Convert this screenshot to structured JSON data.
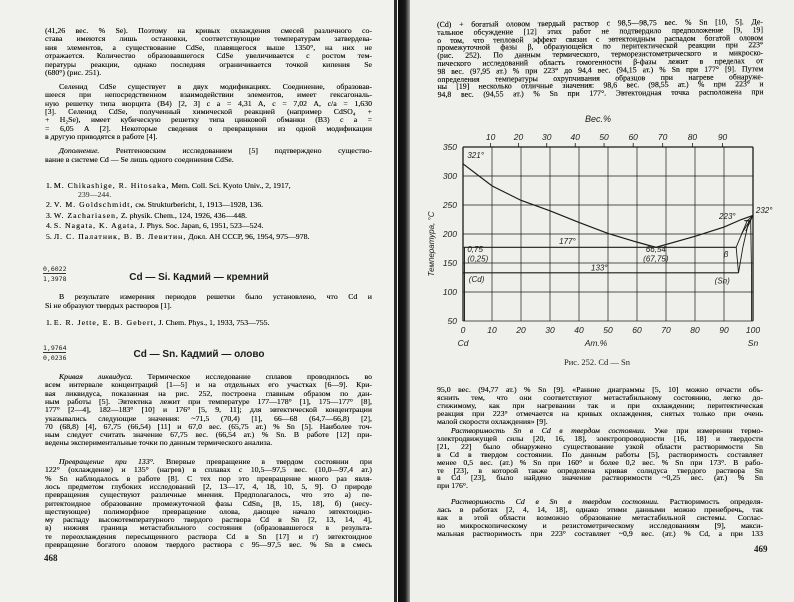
{
  "left_page": {
    "p1": {
      "lead": "",
      "lines": [
        "(41,26 вес. % Se). Поэтому на кривых охлаждения смесей различного со-",
        "става имеются лишь остановки, соответствующие температурам затвердева-",
        "ния элементов, а существование CdSe, плавящегося выше 1350°, на них не",
        "отражается. Количество образовавшегося CdSe увеличивается с ростом тем-",
        "пературы реакции, однако последняя ограничивается точкой кипения Se",
        "(680°) (рис. 251)."
      ]
    },
    "p2": {
      "lead": "",
      "lines": [
        "Селенид CdSe существует в двух модификациях. Соединение, образовав-",
        "шееся при непосредственном взаимодействии элементов, имеет гексагональ-",
        "ную решетку типа вюрцита (B4) [2, 3] с a = 4,31 A, c = 7,02 A, c/a = 1,630",
        "[3]. Селенид CdSe, полученный химической реакцией (например CdSO₄ +",
        "+ H₂Se), имеет кубическую решетку типа цинковой обманки (B3) с a =",
        "= 6,05 A [2]. Некоторые сведения о превращении из одной модификации",
        "в другую приводятся в работе [4]."
      ]
    },
    "p3": {
      "lead": "Дополнение.",
      "lines": [
        " Рентгеновским исследованием [5] подтверждено существо-",
        "вание в системе Cd — Se лишь одного соединения CdSe."
      ]
    },
    "refs_se": [
      {
        "num": "1.",
        "authors": "M. Chikashige, R. Hitosaka,",
        "source": " Mem. Coll. Sci. Kyoto Univ., 2, 1917,",
        "cont": "239—244."
      },
      {
        "num": "2.",
        "authors": "V. M. Goldschmidt,",
        "source": " см. Strukturbericht, 1, 1913—1928, 136."
      },
      {
        "num": "3.",
        "authors": "W. Zachariasen,",
        "source": " Z. physik. Chem., 124, 1926, 436—448."
      },
      {
        "num": "4.",
        "authors": "S. Nagata, K. Agata,",
        "source": " J. Phys. Soc. Japan, 6, 1951, 523—524."
      },
      {
        "num": "5.",
        "authors": "Л. С. Палатник, В. В. Левитин,",
        "source": " Докл. АН СССР, 96, 1954, 975—978."
      }
    ],
    "cd_si": {
      "margin_top": "0,6022",
      "margin_bottom": "1,3978",
      "title": "Cd — Si. Кадмий — кремний",
      "para": {
        "lead": "",
        "lines": [
          "В результате измерения периодов решетки было установлено, что Cd и",
          "Si не образуют твердых растворов [1]."
        ]
      },
      "refs": [
        {
          "num": "1.",
          "authors": "E. R. Jette, E. B. Gebert,",
          "source": " J. Chem. Phys., 1, 1933, 753—755."
        }
      ]
    },
    "cd_sn": {
      "margin_top": "1,9764",
      "margin_bottom": "0,0236",
      "title": "Cd — Sn. Кадмий — олово",
      "p1": {
        "lead": "Кривая ликвидуса.",
        "lines": [
          " Термическое исследование сплавов проводилось во",
          "всем интервале концентраций [1—5] и на отдельных его участках [6—9]. Кри-",
          "вая ликвидуса, показанная на рис. 252, построена главным образом по дан-",
          "ным работы [5]. Эвтектика лежит при температуре 177—178° [1], 175—177° [8],",
          "177° [2—4], 182—183° [10] и 176° [5, 9, 11]; для эвтектической концентрации",
          "указывались следующие значения: ~71,5 (70,4) [1], 66—68 (64,7—66,8) [2],",
          "70 (68,8) [4], 67,75 (66,54) [11] и 67,0 вес. (65,75 ат.) % Sn [5]. Наиболее точ-",
          "ным следует считать значение 67,75 вес. (66,54 ат.) % Sn. В работе [12] при-",
          "ведены экспериментальные точки по данным термического анализа."
        ]
      },
      "p2": {
        "lead": "Превращение при 133°.",
        "lines": [
          " Впервые превращение в твердом состоянии при",
          "122° (охлаждение) и 135° (нагрев) в сплавах с 10,5—97,5 вес. (10,0—97,4 ат.)",
          "% Sn наблюдалось в работе [8]. С тех пор это превращение много раз явля-",
          "лось предметом глубоких исследований [2, 13—17, 4, 18, 10, 5, 9]. О природе",
          "превращения существуют различные мнения. Предполагалось, что это а) пе-",
          "ритектоидное образование промежуточной фазы CdSn₄ [8, 15, 18], б) (несу-",
          "ществующее) полиморфное превращение олова, дающее начало эвтектоидно-",
          "му распаду высокотемпературного твердого раствора Cd в Sn [2, 13, 14, 4],",
          "в) нижняя граница метастабильного состояния (образовавшегося в результа-",
          "те переохлаждения пересыщенного раствора Cd в Sn [17] и г) эвтектоидное",
          "превращение богатого оловом твердого раствора с 95—97,5 вес. % Sn в смесь"
        ]
      }
    },
    "page_number": "468"
  },
  "right_page": {
    "p1": {
      "lead": "",
      "lines": [
        "(Cd) + богатый оловом твердый раствор с 98,5—98,75 вес. % Sn [10, 5]. Де-",
        "тальное обсуждение [12] этих работ не подтвердило предположение [9, 19]",
        "о том, что тепловой эффект связан с эвтектоидным распадом богатой оловом",
        "промежуточной фазы β, образующейся по перитектической реакции при 223°",
        "(рис. 252). По данным термического, терморезистометрического и микроско-",
        "пического исследований область гомогенности β-фазы лежит в пределах от",
        "98 вес. (97,95 ат.) % при 223° до 94,4 вес. (94,15 ат.) % Sn при 177° [9]. Путем",
        "определения температуры охрупчивания образцов при нагреве обнаруже-",
        "ны [19] несколько отличные значения: 98,6 вес. (98,55 ат.) % при 223° и",
        "94,8 вес. (94,55 ат.) % Sn при 177°. Эвтектоидная точка расположена при"
      ]
    },
    "caption": "Рис. 252. Cd — Sn",
    "p2": {
      "lead": "",
      "lines": [
        "95,0 вес. (94,77 ат.) % Sn [9]. «Ранние диаграммы [5, 10] можно отчасти объ-",
        "яснить тем, что они соответствуют метастабильному состоянию, легко до-",
        "стижимому, как при нагревании так и при охлаждении; перитектическая",
        "реакция при 223° отмечается на кривых охлаждения, снятых только при очень",
        "малой скорости охлаждения» [9]."
      ]
    },
    "p3": {
      "lead": "Растворимость Sn в Cd в твердом состоянии.",
      "lines": [
        " Уже при измерении термо-",
        "электродвижущей силы [20, 16, 18], электропроводности [16, 18] и твердости",
        "[21, 22] было обнаружено существование узкой области растворимости Sn",
        "в Cd в твердом состоянии. По данным работы [5], растворимость составляет",
        "менее 0,5 вес. (ат.) % Sn при 160° и более 0,2 вес. % Sn при 173°. В рабо-",
        "те [23], в которой также определена кривая солидуса твердого раствора Sn",
        "в Cd [23], было найдено значение растворимости ~0,25 вес. (ат.) % Sn",
        "при 176°."
      ]
    },
    "p4": {
      "lead": "Растворимость Cd в Sn в твердом состоянии.",
      "lines": [
        " Растворимость определя-",
        "лась в работах [2, 4, 14, 18], однако этими данными можно пренебречь, так",
        "как в этой области возможно образование метастабильной системы. Соглас-",
        "но микроскопическому и резистометрическому исследованиям [9], макси-",
        "мальная растворимость при 223° составляет ~0,9 вес. (ат.) % Cd, а при 133"
      ]
    },
    "page_number": "469"
  },
  "chart_data": {
    "type": "line",
    "top_axis_label": "Вес.%",
    "top_ticks": [
      "10",
      "20",
      "30",
      "40",
      "50",
      "60",
      "70",
      "80",
      "90"
    ],
    "ylabel": "Температура, °С",
    "yticks": [
      "50",
      "100",
      "150",
      "200",
      "250",
      "300",
      "350"
    ],
    "ylim": [
      50,
      350
    ],
    "xlabel": "Ат.%",
    "xticks": [
      "0",
      "10",
      "20",
      "30",
      "40",
      "50",
      "60",
      "70",
      "80",
      "90",
      "100"
    ],
    "xlim": [
      0,
      100
    ],
    "x_left_element": "Cd",
    "x_right_element": "Sn",
    "grid": true,
    "liquidus": {
      "x": [
        0,
        10,
        20,
        30,
        40,
        50,
        60,
        66.54,
        80,
        90,
        96,
        100
      ],
      "y": [
        321,
        283,
        258,
        240,
        220,
        201,
        186,
        177,
        196,
        212,
        225,
        232
      ]
    },
    "isotherms": [
      {
        "t": 177,
        "x": [
          0.25,
          94.2
        ]
      },
      {
        "t": 133,
        "x": [
          0,
          95
        ]
      },
      {
        "t": 223,
        "x": [
          97,
          99
        ]
      }
    ],
    "labels": {
      "cd_melting": "321°",
      "sn_melting": "232°",
      "peritectic": "223°",
      "eutectic_t": "177°",
      "transformation_t": "133°",
      "eutectic_at": "66,54",
      "eutectic_wt": "(67,75)",
      "cd_solubility_a": "0,75",
      "cd_solubility_b": "(0,25)",
      "cd_phase": "(Cd)",
      "sn_phase": "(Sn)",
      "beta_phase": "β"
    }
  }
}
